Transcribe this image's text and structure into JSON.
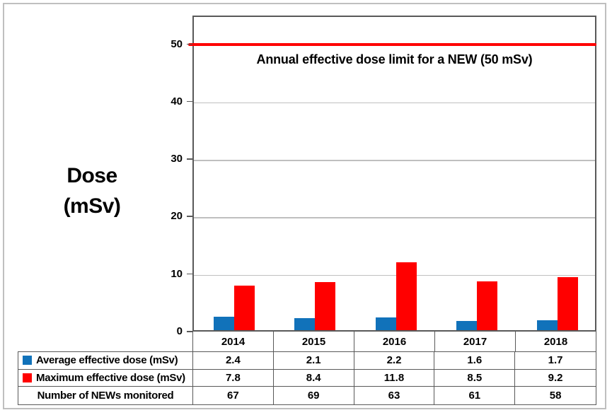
{
  "chart_data": {
    "type": "bar",
    "categories": [
      "2014",
      "2015",
      "2016",
      "2017",
      "2018"
    ],
    "series": [
      {
        "name": "Average effective dose (mSv)",
        "color": "#1172BA",
        "values": [
          2.4,
          2.1,
          2.2,
          1.6,
          1.7
        ]
      },
      {
        "name": "Maximum effective dose (mSv)",
        "color": "#FF0000",
        "values": [
          7.8,
          8.4,
          11.8,
          8.5,
          9.2
        ]
      }
    ],
    "extra_rows": [
      {
        "name": "Number of NEWs monitored",
        "values": [
          67,
          69,
          63,
          61,
          58
        ]
      }
    ],
    "ylabel": "Dose (mSv)",
    "ylabel_lines": [
      "Dose",
      "(mSv)"
    ],
    "xlabel": "",
    "yticks": [
      0,
      10,
      20,
      30,
      40,
      50
    ],
    "ylim": [
      0,
      55
    ],
    "grid": true,
    "legend_position": "table-below",
    "reference_line": {
      "value": 50,
      "label": "Annual effective dose limit for a NEW (50 mSv)",
      "color": "#FF0000"
    }
  },
  "colors": {
    "grid": "#BFBFBF",
    "frame": "#595959",
    "outer_border": "#BFBFBF",
    "bar_average": "#1172BA",
    "bar_maximum": "#FF0000",
    "limit_line": "#FF0000"
  }
}
